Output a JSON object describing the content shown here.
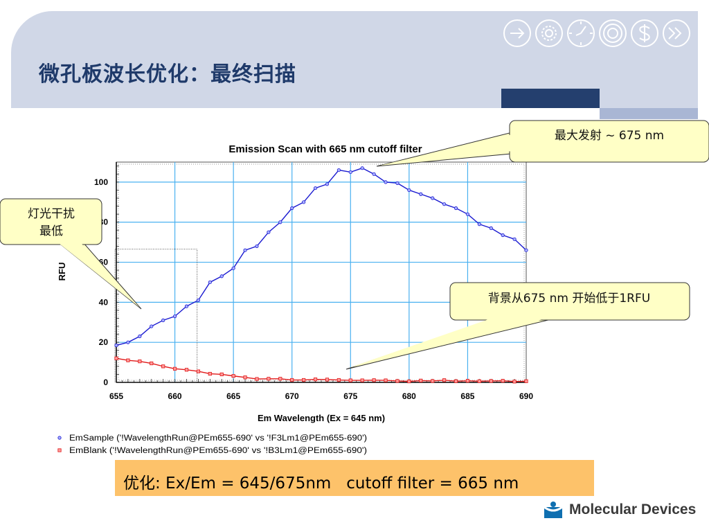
{
  "slide": {
    "title": "微孔板波长优化：最终扫描",
    "banner": "优化: Ex/Em = 645/675nm   cutoff filter = 665 nm",
    "company": "Molecular Devices",
    "icons": [
      "arrow-right-icon",
      "gear-icon",
      "clock-icon",
      "target-icon",
      "dollar-icon",
      "fast-forward-icon"
    ]
  },
  "callouts": {
    "max_emission": "最大发射 ~ 675 nm",
    "min_light_line1": "灯光干扰",
    "min_light_line2": "最低",
    "background": "背景从675 nm 开始低于1RFU"
  },
  "colors": {
    "header": "#d0d7e7",
    "title": "#1f3a6a",
    "sample_series": "#1a1ad0",
    "blank_series": "#e01818",
    "grid": "#48b0f0",
    "callout_fill": "#ffffc6",
    "banner": "#fdc26a"
  },
  "chart_data": {
    "type": "line",
    "title": "Emission Scan with 665 nm cutoff filter",
    "xlabel": "Em Wavelength (Ex = 645 nm)",
    "ylabel": "RFU",
    "xlim": [
      655,
      690
    ],
    "ylim": [
      0,
      110
    ],
    "xticks": [
      655,
      660,
      665,
      670,
      675,
      680,
      685,
      690
    ],
    "yticks": [
      0,
      20,
      40,
      60,
      80,
      100
    ],
    "grid": true,
    "legend_position": "bottom-left",
    "x": [
      655,
      656,
      657,
      658,
      659,
      660,
      661,
      662,
      663,
      664,
      665,
      666,
      667,
      668,
      669,
      670,
      671,
      672,
      673,
      674,
      675,
      676,
      677,
      678,
      679,
      680,
      681,
      682,
      683,
      684,
      685,
      686,
      687,
      688,
      689,
      690
    ],
    "series": [
      {
        "name": "EmSample ('!WavelengthRun@PEm655-690' vs '!F3Lm1@PEm655-690')",
        "values": [
          18.5,
          20,
          23,
          28,
          31,
          33,
          38,
          41,
          50,
          53,
          57,
          66,
          68,
          75,
          80,
          87,
          90,
          97,
          99,
          106,
          105,
          107,
          104,
          100,
          99.5,
          96,
          94,
          92,
          89,
          87,
          84,
          79,
          77,
          73.5,
          71.5,
          66
        ]
      },
      {
        "name": "EmBlank ('!WavelengthRun@PEm655-690' vs '!B3Lm1@PEm655-690')",
        "values": [
          12,
          11,
          10.5,
          9.5,
          8,
          6.8,
          6.3,
          5.5,
          4.3,
          4,
          3.2,
          2.5,
          1.7,
          1.8,
          1.8,
          1.2,
          1.2,
          1.5,
          1.4,
          1.2,
          1,
          1,
          1.1,
          1,
          0.7,
          0.5,
          0.9,
          0.7,
          1.1,
          0.6,
          0.8,
          0.6,
          0.7,
          0.8,
          0.4,
          0.6
        ]
      }
    ]
  }
}
